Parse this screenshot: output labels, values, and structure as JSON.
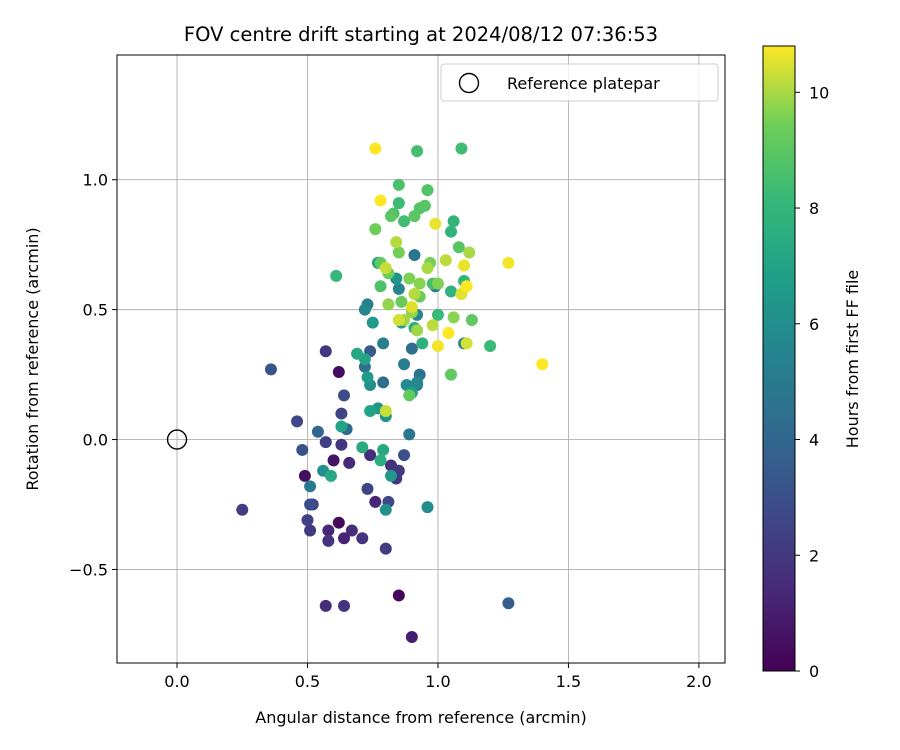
{
  "chart_data": {
    "type": "scatter",
    "title": "FOV centre drift starting at 2024/08/12 07:36:53",
    "xlabel": "Angular distance from reference (arcmin)",
    "ylabel": "Rotation from reference (arcmin)",
    "xlim": [
      -0.23,
      2.1
    ],
    "ylim": [
      -0.86,
      1.48
    ],
    "xticks": [
      0.0,
      0.5,
      1.0,
      1.5,
      2.0
    ],
    "xtick_labels": [
      "0.0",
      "0.5",
      "1.0",
      "1.5",
      "2.0"
    ],
    "yticks": [
      -0.5,
      0.0,
      0.5,
      1.0
    ],
    "ytick_labels": [
      "−0.5",
      "0.0",
      "0.5",
      "1.0"
    ],
    "grid": true,
    "legend": {
      "position": "top-right",
      "entries": [
        "Reference platepar"
      ]
    },
    "reference_point": {
      "x": 0.0,
      "y": 0.0,
      "label": "Reference platepar"
    },
    "colorbar": {
      "label": "Hours from first FF file",
      "colormap": "viridis",
      "range": [
        0,
        10.8
      ],
      "ticks": [
        0,
        2,
        4,
        6,
        8,
        10
      ],
      "tick_labels": [
        "0",
        "2",
        "4",
        "6",
        "8",
        "10"
      ]
    },
    "points": [
      {
        "x": 0.85,
        "y": -0.6,
        "t": 0.2
      },
      {
        "x": 0.62,
        "y": -0.32,
        "t": 0.3
      },
      {
        "x": 0.62,
        "y": 0.26,
        "t": 0.4
      },
      {
        "x": 0.49,
        "y": -0.14,
        "t": 0.5
      },
      {
        "x": 0.6,
        "y": -0.08,
        "t": 0.6
      },
      {
        "x": 0.9,
        "y": -0.76,
        "t": 1.0
      },
      {
        "x": 0.64,
        "y": -0.38,
        "t": 1.2
      },
      {
        "x": 0.58,
        "y": -0.35,
        "t": 1.3
      },
      {
        "x": 0.76,
        "y": -0.24,
        "t": 1.3
      },
      {
        "x": 0.66,
        "y": -0.09,
        "t": 1.4
      },
      {
        "x": 0.57,
        "y": -0.64,
        "t": 1.5
      },
      {
        "x": 0.67,
        "y": -0.35,
        "t": 1.5
      },
      {
        "x": 0.74,
        "y": -0.06,
        "t": 1.6
      },
      {
        "x": 0.82,
        "y": -0.1,
        "t": 1.7
      },
      {
        "x": 0.58,
        "y": -0.39,
        "t": 1.8
      },
      {
        "x": 0.64,
        "y": -0.64,
        "t": 1.8
      },
      {
        "x": 0.63,
        "y": -0.02,
        "t": 1.9
      },
      {
        "x": 0.71,
        "y": -0.38,
        "t": 1.9
      },
      {
        "x": 0.84,
        "y": -0.15,
        "t": 2.0
      },
      {
        "x": 0.57,
        "y": 0.34,
        "t": 2.0
      },
      {
        "x": 0.51,
        "y": -0.35,
        "t": 2.1
      },
      {
        "x": 0.85,
        "y": -0.12,
        "t": 2.1
      },
      {
        "x": 0.25,
        "y": -0.27,
        "t": 2.2
      },
      {
        "x": 0.8,
        "y": -0.42,
        "t": 2.2
      },
      {
        "x": 0.57,
        "y": -0.01,
        "t": 2.3
      },
      {
        "x": 0.5,
        "y": -0.31,
        "t": 2.4
      },
      {
        "x": 0.52,
        "y": -0.25,
        "t": 2.4
      },
      {
        "x": 0.73,
        "y": -0.19,
        "t": 2.5
      },
      {
        "x": 0.63,
        "y": 0.1,
        "t": 2.5
      },
      {
        "x": 0.46,
        "y": 0.07,
        "t": 2.6
      },
      {
        "x": 0.81,
        "y": -0.24,
        "t": 2.7
      },
      {
        "x": 0.64,
        "y": 0.17,
        "t": 2.8
      },
      {
        "x": 0.51,
        "y": -0.25,
        "t": 2.9
      },
      {
        "x": 0.87,
        "y": -0.06,
        "t": 3.0
      },
      {
        "x": 0.48,
        "y": -0.04,
        "t": 3.1
      },
      {
        "x": 0.36,
        "y": 0.27,
        "t": 3.2
      },
      {
        "x": 0.74,
        "y": 0.34,
        "t": 3.4
      },
      {
        "x": 1.27,
        "y": -0.63,
        "t": 3.6
      },
      {
        "x": 0.54,
        "y": 0.03,
        "t": 4.0
      },
      {
        "x": 0.65,
        "y": 0.04,
        "t": 4.2
      },
      {
        "x": 0.79,
        "y": 0.22,
        "t": 4.3
      },
      {
        "x": 0.9,
        "y": 0.35,
        "t": 4.4
      },
      {
        "x": 0.72,
        "y": 0.28,
        "t": 4.5
      },
      {
        "x": 0.93,
        "y": 0.25,
        "t": 4.6
      },
      {
        "x": 0.89,
        "y": 0.02,
        "t": 4.7
      },
      {
        "x": 0.91,
        "y": 0.71,
        "t": 4.8
      },
      {
        "x": 0.99,
        "y": 0.59,
        "t": 4.9
      },
      {
        "x": 0.92,
        "y": 0.21,
        "t": 5.0
      },
      {
        "x": 0.51,
        "y": -0.18,
        "t": 5.0
      },
      {
        "x": 0.87,
        "y": 0.29,
        "t": 5.2
      },
      {
        "x": 0.73,
        "y": 0.52,
        "t": 5.3
      },
      {
        "x": 0.79,
        "y": 0.37,
        "t": 5.3
      },
      {
        "x": 1.1,
        "y": 0.37,
        "t": 5.4
      },
      {
        "x": 0.85,
        "y": 0.58,
        "t": 5.5
      },
      {
        "x": 0.72,
        "y": 0.5,
        "t": 5.6
      },
      {
        "x": 0.92,
        "y": 0.48,
        "t": 5.6
      },
      {
        "x": 0.92,
        "y": 0.22,
        "t": 5.7
      },
      {
        "x": 0.88,
        "y": 0.21,
        "t": 5.8
      },
      {
        "x": 0.96,
        "y": -0.26,
        "t": 5.9
      },
      {
        "x": 0.74,
        "y": 0.21,
        "t": 6.0
      },
      {
        "x": 0.56,
        "y": -0.12,
        "t": 6.0
      },
      {
        "x": 0.8,
        "y": -0.27,
        "t": 6.1
      },
      {
        "x": 0.8,
        "y": 0.09,
        "t": 6.2
      },
      {
        "x": 0.84,
        "y": 0.62,
        "t": 6.3
      },
      {
        "x": 0.77,
        "y": 0.12,
        "t": 6.4
      },
      {
        "x": 0.75,
        "y": 0.45,
        "t": 6.5
      },
      {
        "x": 0.82,
        "y": -0.14,
        "t": 6.5
      },
      {
        "x": 0.73,
        "y": 0.24,
        "t": 6.6
      },
      {
        "x": 0.77,
        "y": 0.68,
        "t": 6.7
      },
      {
        "x": 0.86,
        "y": 0.45,
        "t": 6.8
      },
      {
        "x": 0.9,
        "y": 0.18,
        "t": 6.9
      },
      {
        "x": 0.74,
        "y": 0.11,
        "t": 7.0
      },
      {
        "x": 0.63,
        "y": 0.05,
        "t": 7.0
      },
      {
        "x": 0.72,
        "y": 0.31,
        "t": 7.1
      },
      {
        "x": 0.69,
        "y": 0.33,
        "t": 7.2
      },
      {
        "x": 0.79,
        "y": -0.04,
        "t": 7.3
      },
      {
        "x": 0.59,
        "y": -0.14,
        "t": 7.3
      },
      {
        "x": 0.71,
        "y": -0.03,
        "t": 7.4
      },
      {
        "x": 0.91,
        "y": 0.43,
        "t": 7.5
      },
      {
        "x": 0.78,
        "y": -0.08,
        "t": 7.6
      },
      {
        "x": 0.94,
        "y": 0.37,
        "t": 7.7
      },
      {
        "x": 1.05,
        "y": 0.57,
        "t": 7.8
      },
      {
        "x": 1.05,
        "y": 0.8,
        "t": 7.9
      },
      {
        "x": 1.06,
        "y": 0.84,
        "t": 8.0
      },
      {
        "x": 1.1,
        "y": 0.61,
        "t": 8.0
      },
      {
        "x": 0.61,
        "y": 0.63,
        "t": 8.1
      },
      {
        "x": 1.2,
        "y": 0.36,
        "t": 8.2
      },
      {
        "x": 1.0,
        "y": 0.48,
        "t": 8.2
      },
      {
        "x": 0.85,
        "y": 0.91,
        "t": 8.3
      },
      {
        "x": 0.87,
        "y": 0.84,
        "t": 8.4
      },
      {
        "x": 1.09,
        "y": 1.12,
        "t": 8.4
      },
      {
        "x": 0.92,
        "y": 1.11,
        "t": 8.5
      },
      {
        "x": 0.98,
        "y": 0.6,
        "t": 8.5
      },
      {
        "x": 0.85,
        "y": 0.98,
        "t": 8.6
      },
      {
        "x": 0.78,
        "y": 0.59,
        "t": 8.7
      },
      {
        "x": 0.83,
        "y": 0.87,
        "t": 8.7
      },
      {
        "x": 0.93,
        "y": 0.89,
        "t": 8.8
      },
      {
        "x": 0.96,
        "y": 0.96,
        "t": 8.8
      },
      {
        "x": 0.95,
        "y": 0.9,
        "t": 8.9
      },
      {
        "x": 1.08,
        "y": 0.74,
        "t": 8.9
      },
      {
        "x": 0.82,
        "y": 0.86,
        "t": 9.0
      },
      {
        "x": 0.91,
        "y": 0.86,
        "t": 9.0
      },
      {
        "x": 1.13,
        "y": 0.46,
        "t": 9.1
      },
      {
        "x": 1.05,
        "y": 0.25,
        "t": 9.1
      },
      {
        "x": 0.89,
        "y": 0.17,
        "t": 9.2
      },
      {
        "x": 0.78,
        "y": 0.68,
        "t": 9.2
      },
      {
        "x": 0.86,
        "y": 0.53,
        "t": 9.3
      },
      {
        "x": 0.93,
        "y": 0.55,
        "t": 9.3
      },
      {
        "x": 0.81,
        "y": 0.64,
        "t": 9.4
      },
      {
        "x": 0.76,
        "y": 0.81,
        "t": 9.4
      },
      {
        "x": 0.85,
        "y": 0.72,
        "t": 9.5
      },
      {
        "x": 0.97,
        "y": 0.68,
        "t": 9.5
      },
      {
        "x": 0.89,
        "y": 0.62,
        "t": 9.6
      },
      {
        "x": 1.0,
        "y": 0.6,
        "t": 9.6
      },
      {
        "x": 0.93,
        "y": 0.6,
        "t": 9.7
      },
      {
        "x": 1.06,
        "y": 0.47,
        "t": 9.7
      },
      {
        "x": 0.81,
        "y": 0.52,
        "t": 9.8
      },
      {
        "x": 0.9,
        "y": 0.49,
        "t": 9.8
      },
      {
        "x": 0.87,
        "y": 0.46,
        "t": 9.9
      },
      {
        "x": 0.92,
        "y": 0.42,
        "t": 9.9
      },
      {
        "x": 1.12,
        "y": 0.72,
        "t": 10.0
      },
      {
        "x": 0.96,
        "y": 0.66,
        "t": 10.0
      },
      {
        "x": 0.84,
        "y": 0.76,
        "t": 10.1
      },
      {
        "x": 0.91,
        "y": 0.56,
        "t": 10.1
      },
      {
        "x": 0.98,
        "y": 0.44,
        "t": 10.2
      },
      {
        "x": 1.03,
        "y": 0.69,
        "t": 10.2
      },
      {
        "x": 0.8,
        "y": 0.11,
        "t": 10.3
      },
      {
        "x": 0.8,
        "y": 0.66,
        "t": 10.3
      },
      {
        "x": 1.11,
        "y": 0.37,
        "t": 10.4
      },
      {
        "x": 0.85,
        "y": 0.46,
        "t": 10.4
      },
      {
        "x": 1.09,
        "y": 0.56,
        "t": 10.5
      },
      {
        "x": 0.9,
        "y": 0.51,
        "t": 10.5
      },
      {
        "x": 0.99,
        "y": 0.83,
        "t": 10.6
      },
      {
        "x": 1.1,
        "y": 0.67,
        "t": 10.6
      },
      {
        "x": 1.27,
        "y": 0.68,
        "t": 10.7
      },
      {
        "x": 1.0,
        "y": 0.36,
        "t": 10.7
      },
      {
        "x": 0.78,
        "y": 0.92,
        "t": 10.8
      },
      {
        "x": 0.76,
        "y": 1.12,
        "t": 10.8
      },
      {
        "x": 1.4,
        "y": 0.29,
        "t": 10.8
      },
      {
        "x": 1.04,
        "y": 0.41,
        "t": 10.8
      },
      {
        "x": 1.11,
        "y": 0.59,
        "t": 10.8
      }
    ]
  }
}
